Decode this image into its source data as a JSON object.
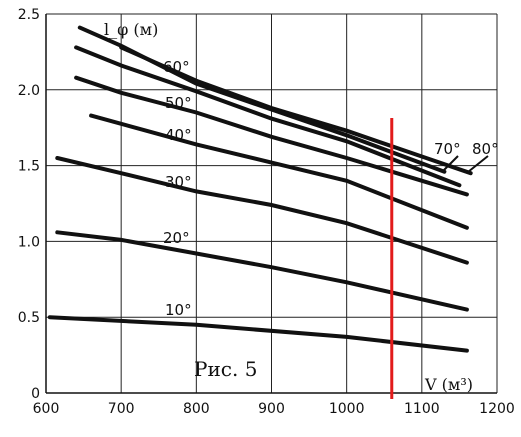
{
  "chart_data": {
    "type": "line",
    "ylabel": "l_φ (м)",
    "xlabel": "V (м³)",
    "caption": "Рис. 5",
    "xlim": [
      600,
      1200
    ],
    "ylim": [
      0,
      2.5
    ],
    "x_ticks": [
      "600",
      "700",
      "800",
      "900",
      "1000",
      "1100",
      "1200"
    ],
    "y_ticks": [
      "0",
      "0.5",
      "1.0",
      "1.5",
      "2.0",
      "2.5"
    ],
    "grid": true,
    "series": [
      {
        "name": "10°",
        "points": [
          [
            605,
            0.5
          ],
          [
            800,
            0.45
          ],
          [
            1000,
            0.37
          ],
          [
            1160,
            0.28
          ]
        ]
      },
      {
        "name": "20°",
        "points": [
          [
            615,
            1.06
          ],
          [
            700,
            1.01
          ],
          [
            800,
            0.92
          ],
          [
            900,
            0.83
          ],
          [
            1000,
            0.73
          ],
          [
            1160,
            0.55
          ]
        ]
      },
      {
        "name": "30°",
        "points": [
          [
            615,
            1.55
          ],
          [
            700,
            1.45
          ],
          [
            800,
            1.33
          ],
          [
            900,
            1.24
          ],
          [
            1000,
            1.12
          ],
          [
            1160,
            0.86
          ]
        ]
      },
      {
        "name": "40°",
        "points": [
          [
            660,
            1.83
          ],
          [
            800,
            1.64
          ],
          [
            900,
            1.52
          ],
          [
            1000,
            1.4
          ],
          [
            1160,
            1.09
          ]
        ]
      },
      {
        "name": "50°",
        "points": [
          [
            640,
            2.08
          ],
          [
            700,
            1.98
          ],
          [
            800,
            1.85
          ],
          [
            900,
            1.69
          ],
          [
            1000,
            1.55
          ],
          [
            1160,
            1.31
          ]
        ]
      },
      {
        "name": "60°",
        "points": [
          [
            640,
            2.28
          ],
          [
            700,
            2.16
          ],
          [
            800,
            1.99
          ],
          [
            900,
            1.81
          ],
          [
            1000,
            1.66
          ],
          [
            1150,
            1.37
          ]
        ]
      },
      {
        "name": "70°",
        "points": [
          [
            645,
            2.41
          ],
          [
            700,
            2.29
          ],
          [
            800,
            2.04
          ],
          [
            900,
            1.87
          ],
          [
            1000,
            1.7
          ],
          [
            1130,
            1.46
          ]
        ]
      },
      {
        "name": "80°",
        "points": [
          [
            700,
            2.28
          ],
          [
            800,
            2.06
          ],
          [
            900,
            1.88
          ],
          [
            1000,
            1.73
          ],
          [
            1100,
            1.56
          ],
          [
            1165,
            1.45
          ]
        ]
      }
    ],
    "reference_line": {
      "x": 1060,
      "color": "#e21b1b"
    }
  }
}
